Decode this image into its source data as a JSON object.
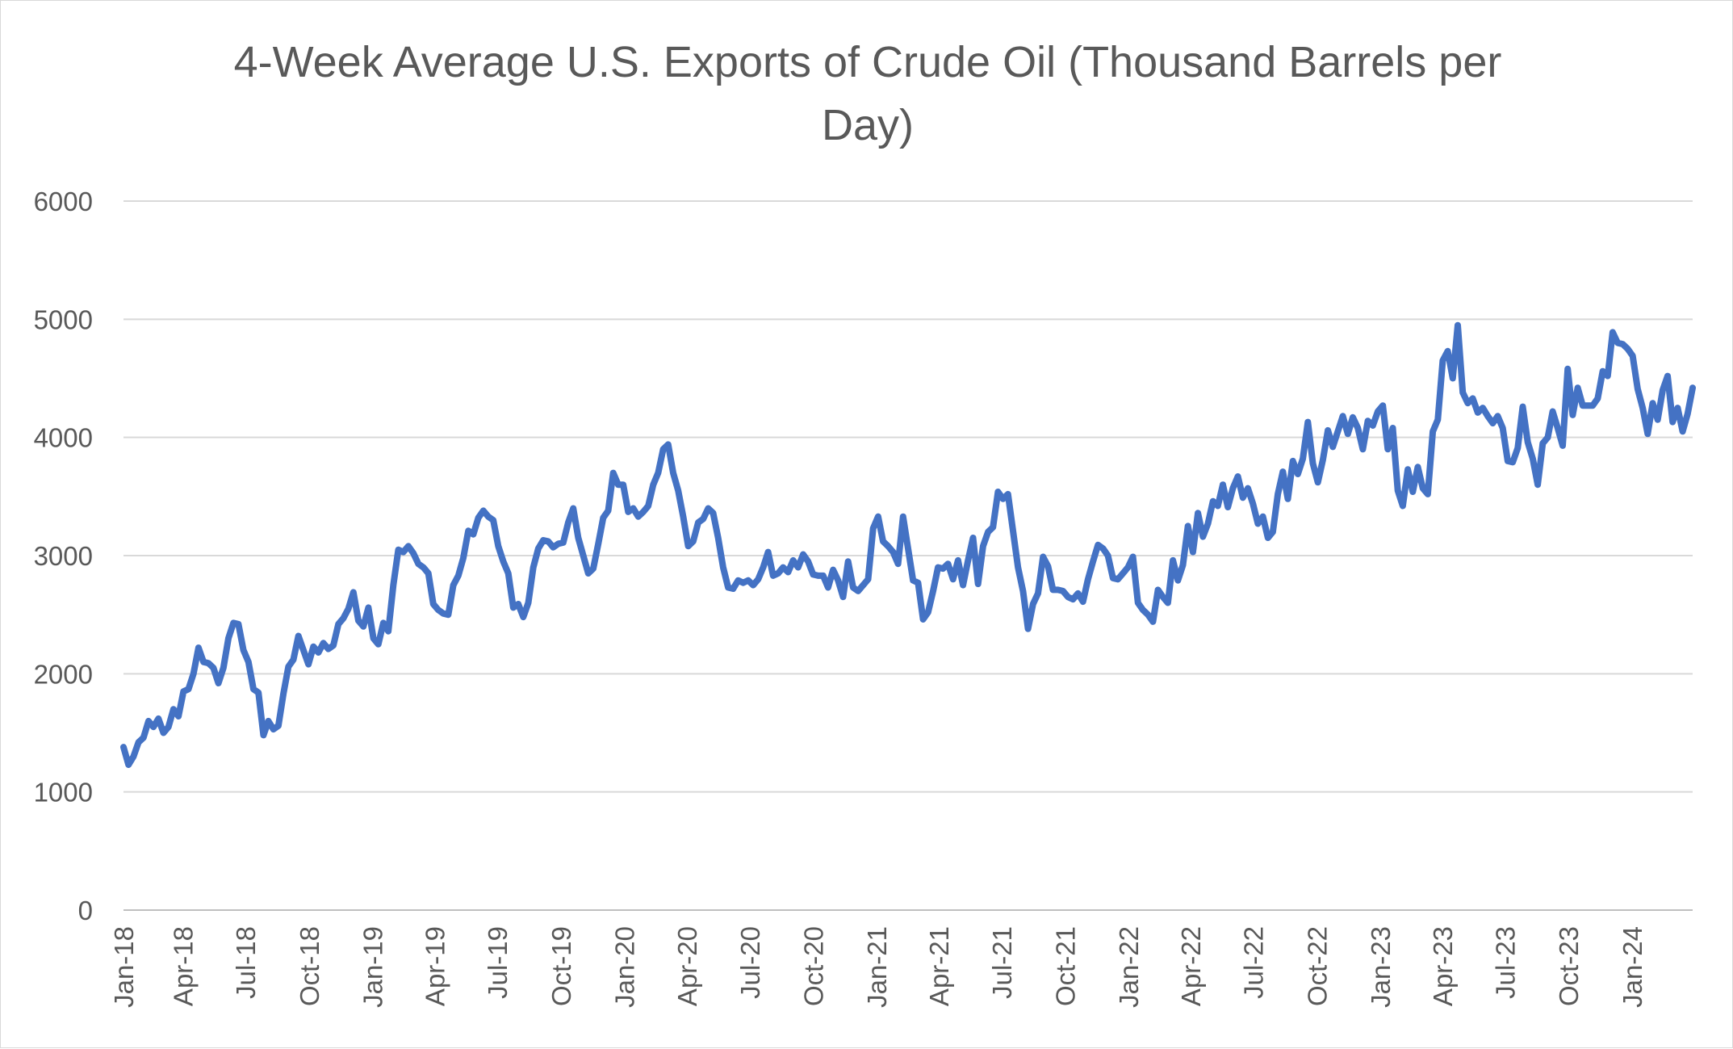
{
  "chart_data": {
    "type": "line",
    "title_lines": [
      "4-Week Average U.S. Exports of Crude Oil  (Thousand Barrels per",
      "Day)"
    ],
    "xlabel": "",
    "ylabel": "",
    "ylim": [
      0,
      6000
    ],
    "y_ticks": [
      "0",
      "1000",
      "2000",
      "3000",
      "4000",
      "5000",
      "6000"
    ],
    "x_ticks": [
      "Jan-18",
      "Apr-18",
      "Jul-18",
      "Oct-18",
      "Jan-19",
      "Apr-19",
      "Jul-19",
      "Oct-19",
      "Jan-20",
      "Apr-20",
      "Jul-20",
      "Oct-20",
      "Jan-21",
      "Apr-21",
      "Jul-21",
      "Oct-21",
      "Jan-22",
      "Apr-22",
      "Jul-22",
      "Oct-22",
      "Jan-23",
      "Apr-23",
      "Jul-23",
      "Oct-23",
      "Jan-24"
    ],
    "x_start": "2018-01-05",
    "x_end": "2024-03-29",
    "grid": true,
    "legend": "none",
    "color": "#4472c4",
    "series": [
      {
        "values": [
          1380,
          1230,
          1300,
          1420,
          1460,
          1600,
          1550,
          1620,
          1500,
          1550,
          1700,
          1640,
          1850,
          1870,
          2000,
          2220,
          2100,
          2090,
          2050,
          1920,
          2050,
          2300,
          2430,
          2420,
          2200,
          2100,
          1870,
          1840,
          1480,
          1600,
          1530,
          1560,
          1830,
          2060,
          2120,
          2320,
          2200,
          2080,
          2230,
          2180,
          2260,
          2210,
          2240,
          2420,
          2470,
          2550,
          2690,
          2450,
          2400,
          2560,
          2300,
          2250,
          2430,
          2360,
          2750,
          3050,
          3030,
          3080,
          3020,
          2930,
          2900,
          2850,
          2590,
          2540,
          2510,
          2500,
          2750,
          2830,
          2980,
          3210,
          3180,
          3320,
          3380,
          3330,
          3300,
          3080,
          2950,
          2850,
          2560,
          2590,
          2480,
          2600,
          2900,
          3060,
          3130,
          3120,
          3070,
          3100,
          3110,
          3280,
          3400,
          3150,
          3000,
          2850,
          2890,
          3100,
          3320,
          3380,
          3700,
          3600,
          3600,
          3370,
          3400,
          3330,
          3370,
          3420,
          3600,
          3700,
          3900,
          3940,
          3700,
          3550,
          3330,
          3080,
          3120,
          3280,
          3310,
          3400,
          3360,
          3150,
          2900,
          2730,
          2720,
          2790,
          2770,
          2790,
          2750,
          2800,
          2900,
          3030,
          2830,
          2850,
          2900,
          2860,
          2960,
          2900,
          3010,
          2950,
          2840,
          2830,
          2830,
          2730,
          2880,
          2790,
          2650,
          2950,
          2730,
          2700,
          2750,
          2800,
          3230,
          3330,
          3120,
          3080,
          3030,
          2930,
          3330,
          3060,
          2790,
          2770,
          2460,
          2520,
          2700,
          2900,
          2890,
          2930,
          2800,
          2960,
          2750,
          2960,
          3150,
          2760,
          3080,
          3200,
          3240,
          3540,
          3480,
          3520,
          3210,
          2900,
          2700,
          2380,
          2590,
          2680,
          2990,
          2910,
          2710,
          2710,
          2700,
          2650,
          2630,
          2680,
          2610,
          2800,
          2950,
          3090,
          3060,
          3000,
          2810,
          2800,
          2850,
          2900,
          2990,
          2600,
          2540,
          2500,
          2440,
          2710,
          2650,
          2600,
          2960,
          2790,
          2920,
          3250,
          3030,
          3360,
          3160,
          3270,
          3460,
          3420,
          3600,
          3410,
          3570,
          3670,
          3490,
          3570,
          3440,
          3270,
          3330,
          3150,
          3200,
          3520,
          3710,
          3480,
          3800,
          3690,
          3820,
          4130,
          3780,
          3620,
          3810,
          4060,
          3920,
          4050,
          4180,
          4030,
          4170,
          4080,
          3900,
          4140,
          4100,
          4220,
          4270,
          3900,
          4080,
          3550,
          3420,
          3730,
          3540,
          3750,
          3570,
          3520,
          4050,
          4150,
          4650,
          4730,
          4500,
          4950,
          4380,
          4290,
          4330,
          4210,
          4250,
          4180,
          4120,
          4180,
          4080,
          3800,
          3790,
          3910,
          4260,
          3960,
          3820,
          3600,
          3950,
          4000,
          4220,
          4080,
          3930,
          4580,
          4190,
          4420,
          4270,
          4270,
          4270,
          4330,
          4560,
          4520,
          4890,
          4800,
          4790,
          4750,
          4690,
          4410,
          4250,
          4030,
          4290,
          4150,
          4400,
          4520,
          4130,
          4250,
          4050,
          4200,
          4420
        ]
      }
    ]
  }
}
